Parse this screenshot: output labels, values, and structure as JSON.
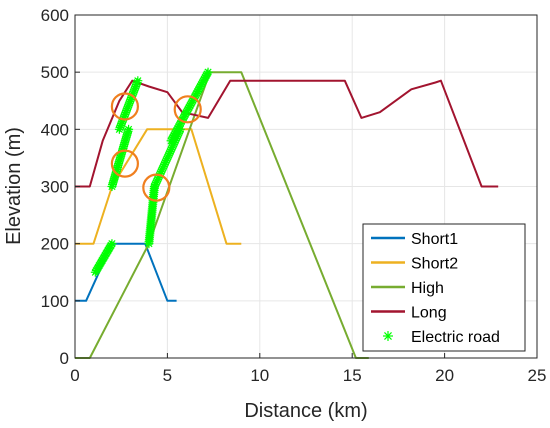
{
  "chart_data": {
    "type": "line",
    "xlabel": "Distance (km)",
    "ylabel": "Elevation (m)",
    "xlim": [
      0,
      25
    ],
    "ylim": [
      0,
      600
    ],
    "xticks": [
      "0",
      "5",
      "10",
      "15",
      "20",
      "25"
    ],
    "yticks": [
      "0",
      "100",
      "200",
      "300",
      "400",
      "500",
      "600"
    ],
    "legend_position": "bottom-right",
    "grid": true,
    "series": [
      {
        "name": "Short1",
        "color": "#0072BD",
        "x": [
          0,
          0.6,
          1.3,
          2.0,
          3.0,
          3.8,
          5.0,
          5.5
        ],
        "y": [
          100,
          100,
          150,
          200,
          200,
          200,
          100,
          100
        ]
      },
      {
        "name": "Short2",
        "color": "#EDB120",
        "x": [
          0,
          1.0,
          2.0,
          3.9,
          5.6,
          6.3,
          8.2,
          9.0
        ],
        "y": [
          200,
          200,
          300,
          400,
          400,
          400,
          200,
          200
        ]
      },
      {
        "name": "High",
        "color": "#77AC30",
        "x": [
          0,
          0.8,
          4.0,
          7.3,
          9.0,
          15.2,
          15.9
        ],
        "y": [
          0,
          0,
          200,
          500,
          500,
          0,
          0
        ]
      },
      {
        "name": "Long",
        "color": "#A2142F",
        "x": [
          0,
          0.8,
          1.5,
          2.4,
          3.1,
          4.0,
          5.0,
          5.8,
          7.2,
          8.4,
          14.6,
          15.5,
          16.5,
          18.2,
          19.5,
          19.8,
          22.0,
          22.9
        ],
        "y": [
          300,
          300,
          380,
          450,
          485,
          475,
          465,
          430,
          420,
          485,
          485,
          420,
          430,
          470,
          482,
          485,
          300,
          300
        ]
      }
    ],
    "electric_road": {
      "name": "Electric road",
      "color": "#00FF00",
      "segments": [
        {
          "x": [
            1.1,
            2.0
          ],
          "y": [
            150,
            200
          ]
        },
        {
          "x": [
            2.0,
            2.9
          ],
          "y": [
            300,
            400
          ]
        },
        {
          "x": [
            2.4,
            3.4
          ],
          "y": [
            400,
            485
          ]
        },
        {
          "x": [
            4.0,
            4.3
          ],
          "y": [
            200,
            300
          ]
        },
        {
          "x": [
            4.3,
            5.7
          ],
          "y": [
            300,
            400
          ]
        },
        {
          "x": [
            5.2,
            7.2
          ],
          "y": [
            380,
            500
          ]
        }
      ]
    },
    "highlight_circles": [
      {
        "x": 2.7,
        "y": 440
      },
      {
        "x": 2.7,
        "y": 340
      },
      {
        "x": 4.4,
        "y": 298
      },
      {
        "x": 6.1,
        "y": 435
      }
    ]
  }
}
